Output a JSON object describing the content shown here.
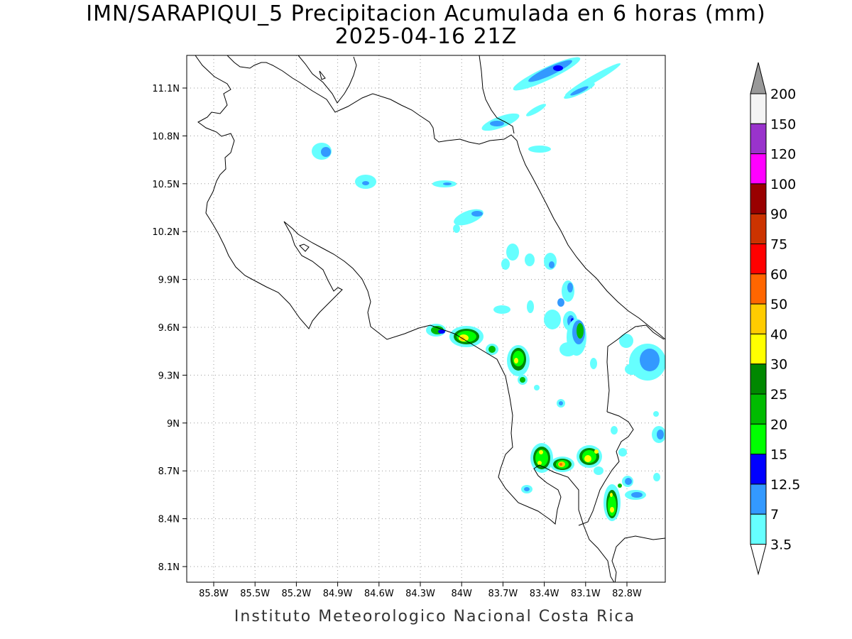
{
  "title": "IMN/SARAPIQUI_5 Precipitacion Acumulada en 6 horas (mm)",
  "subtitle": "2025-04-16 21Z",
  "footer": "Instituto Meteorologico Nacional Costa Rica",
  "map": {
    "lon_ticks": [
      "85.8W",
      "85.5W",
      "85.2W",
      "84.9W",
      "84.6W",
      "84.3W",
      "84W",
      "83.7W",
      "83.4W",
      "83.1W",
      "82.8W"
    ],
    "lat_ticks": [
      "11.1N",
      "10.8N",
      "10.5N",
      "10.2N",
      "9.9N",
      "9.6N",
      "9.3N",
      "9N",
      "8.7N",
      "8.4N",
      "8.1N"
    ],
    "grid": true
  },
  "colorbar": {
    "labels": [
      "200",
      "150",
      "120",
      "100",
      "90",
      "75",
      "60",
      "50",
      "40",
      "30",
      "25",
      "20",
      "15",
      "12.5",
      "7",
      "3.5"
    ],
    "colors": [
      "#f4f4f4",
      "#9933cc",
      "#ff00ff",
      "#990000",
      "#cc3300",
      "#ff0000",
      "#ff6600",
      "#ffcc00",
      "#ffff00",
      "#008800",
      "#00bb00",
      "#00ff00",
      "#0000ff",
      "#3399ff",
      "#66ffff"
    ],
    "over_color": "#999999",
    "under_color": "#ffffff"
  }
}
